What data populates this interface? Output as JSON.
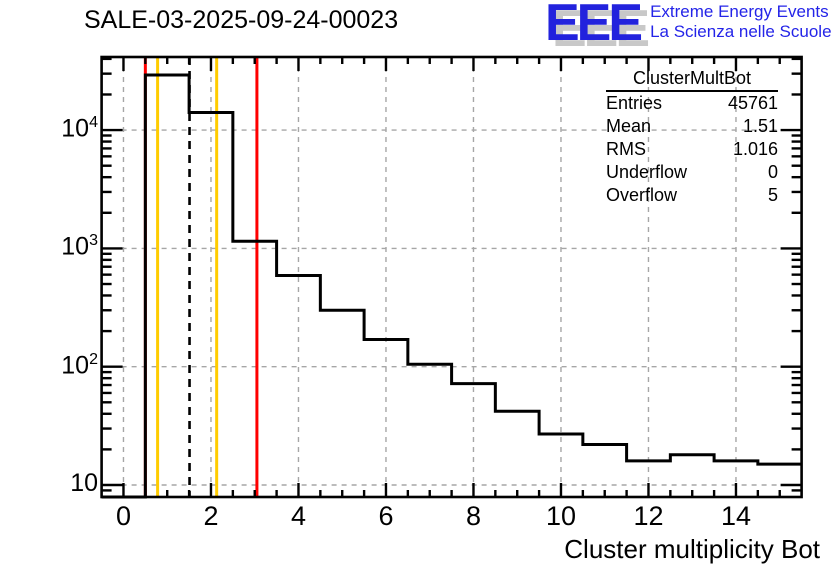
{
  "header": {
    "title": "SALE-03-2025-09-24-00023"
  },
  "logo": {
    "acronym": "EEE",
    "line1": "Extreme Energy Events",
    "line2": "La Scienza nelle Scuole",
    "blue": "#2222dd",
    "shadow_gray": "#c8c8c8"
  },
  "stats": {
    "title": "ClusterMultBot",
    "rows": [
      {
        "label": "Entries",
        "value": "45761"
      },
      {
        "label": "Mean",
        "value": "1.51"
      },
      {
        "label": "RMS",
        "value": "1.016"
      },
      {
        "label": "Underflow",
        "value": "0"
      },
      {
        "label": "Overflow",
        "value": "5"
      }
    ]
  },
  "chart_data": {
    "type": "bar",
    "subtype": "step-histogram",
    "title": "SALE-03-2025-09-24-00023",
    "xlabel": "Cluster multiplicity Bot",
    "ylabel": "",
    "y_scale": "log",
    "x_range": [
      -0.5,
      15.5
    ],
    "y_range": [
      8,
      41400
    ],
    "bin_width": 1,
    "bin_centers": [
      0,
      1,
      2,
      3,
      4,
      5,
      6,
      7,
      8,
      9,
      10,
      11,
      12,
      13,
      14,
      15
    ],
    "counts": [
      0,
      29200,
      14100,
      1150,
      590,
      300,
      170,
      105,
      72,
      42,
      27,
      22,
      16,
      18,
      16,
      15
    ],
    "x_major_ticks": [
      0,
      2,
      4,
      6,
      8,
      10,
      12,
      14
    ],
    "x_minor_tick_step": 0.5,
    "y_major_ticks": [
      10,
      100,
      1000,
      10000
    ],
    "y_tick_labels": [
      {
        "base": "10",
        "exp": ""
      },
      {
        "base": "10",
        "exp": "2"
      },
      {
        "base": "10",
        "exp": "3"
      },
      {
        "base": "10",
        "exp": "4"
      }
    ],
    "grid": {
      "show": true,
      "style": "dashed",
      "color": "#a6a6a6"
    },
    "histogram_color": "#000000",
    "frame_color": "#000000",
    "reference_lines": [
      {
        "x": 0.5,
        "color": "#ff0000",
        "style": "solid",
        "name": "red-threshold-low"
      },
      {
        "x": 0.78,
        "color": "#ffcc00",
        "style": "solid",
        "name": "yellow-threshold-low"
      },
      {
        "x": 1.51,
        "color": "#000000",
        "style": "dashed",
        "name": "mean-line"
      },
      {
        "x": 2.13,
        "color": "#ffcc00",
        "style": "solid",
        "name": "yellow-threshold-high"
      },
      {
        "x": 3.05,
        "color": "#ff0000",
        "style": "solid",
        "name": "red-threshold-high"
      }
    ],
    "legend": "none"
  }
}
